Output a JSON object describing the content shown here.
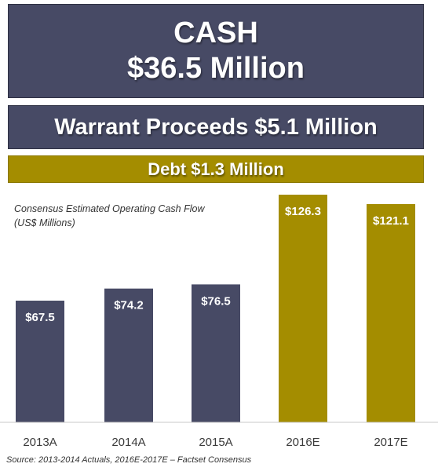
{
  "header": {
    "cash_title": "CASH",
    "cash_amount": "$36.5 Million",
    "warrant": "Warrant Proceeds $5.1 Million",
    "debt": "Debt $1.3 Million"
  },
  "chart_note": {
    "line1": "Consensus Estimated Operating Cash Flow",
    "line2": "(US$ Millions)"
  },
  "source": "Source: 2013-2014 Actuals, 2016E-2017E – Factset Consensus",
  "colors": {
    "actual": "#474a65",
    "estimate": "#a48d00"
  },
  "chart_data": {
    "type": "bar",
    "title": "Consensus Estimated Operating Cash Flow",
    "ylabel": "US$ Millions",
    "categories": [
      "2013A",
      "2014A",
      "2015A",
      "2016E",
      "2017E"
    ],
    "values": [
      67.5,
      74.2,
      76.5,
      126.3,
      121.1
    ],
    "labels": [
      "$67.5",
      "$74.2",
      "$76.5",
      "$126.3",
      "$121.1"
    ],
    "kinds": [
      "actual",
      "actual",
      "actual",
      "estimate",
      "estimate"
    ],
    "ylim": [
      0,
      126.3
    ],
    "grid": false,
    "legend": "none"
  }
}
